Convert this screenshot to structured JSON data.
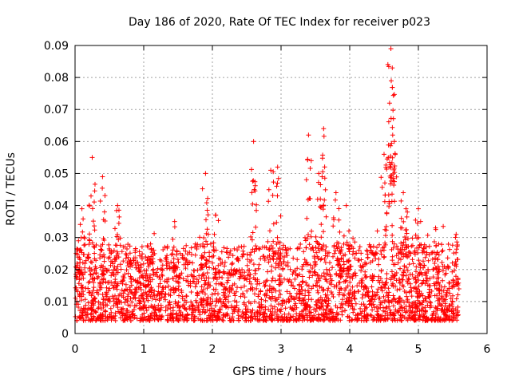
{
  "chart_data": {
    "type": "scatter",
    "title": "Day 186 of 2020, Rate Of TEC Index for receiver p023",
    "xlabel": "GPS time / hours",
    "ylabel": "ROTI / TECUs",
    "xlim": [
      0,
      6
    ],
    "ylim": [
      0,
      0.09
    ],
    "xticks": [
      "0",
      "1",
      "2",
      "3",
      "4",
      "5",
      "6"
    ],
    "yticks": [
      "0",
      "0.01",
      "0.02",
      "0.03",
      "0.04",
      "0.05",
      "0.06",
      "0.07",
      "0.08",
      "0.09"
    ],
    "grid": true,
    "marker": "plus",
    "color": "#ff0000",
    "series": [
      {
        "name": "ROTI",
        "x_range": [
          0,
          5.58
        ],
        "baseline_min": 0.004,
        "baseline_max": 0.028,
        "peaks": [
          {
            "x": 0.05,
            "y": 0.029
          },
          {
            "x": 0.1,
            "y": 0.039
          },
          {
            "x": 0.25,
            "y": 0.055
          },
          {
            "x": 0.4,
            "y": 0.049
          },
          {
            "x": 0.62,
            "y": 0.04
          },
          {
            "x": 1.1,
            "y": 0.028
          },
          {
            "x": 1.45,
            "y": 0.035
          },
          {
            "x": 1.9,
            "y": 0.05
          },
          {
            "x": 2.05,
            "y": 0.037
          },
          {
            "x": 2.6,
            "y": 0.06
          },
          {
            "x": 2.85,
            "y": 0.051
          },
          {
            "x": 2.95,
            "y": 0.052
          },
          {
            "x": 3.4,
            "y": 0.062
          },
          {
            "x": 3.55,
            "y": 0.05
          },
          {
            "x": 3.62,
            "y": 0.064
          },
          {
            "x": 3.8,
            "y": 0.044
          },
          {
            "x": 3.95,
            "y": 0.04
          },
          {
            "x": 4.5,
            "y": 0.056
          },
          {
            "x": 4.58,
            "y": 0.072
          },
          {
            "x": 4.6,
            "y": 0.089
          },
          {
            "x": 4.62,
            "y": 0.083
          },
          {
            "x": 4.65,
            "y": 0.06
          },
          {
            "x": 4.78,
            "y": 0.044
          },
          {
            "x": 4.82,
            "y": 0.039
          },
          {
            "x": 5.0,
            "y": 0.039
          },
          {
            "x": 5.25,
            "y": 0.033
          },
          {
            "x": 5.55,
            "y": 0.031
          }
        ]
      }
    ]
  }
}
